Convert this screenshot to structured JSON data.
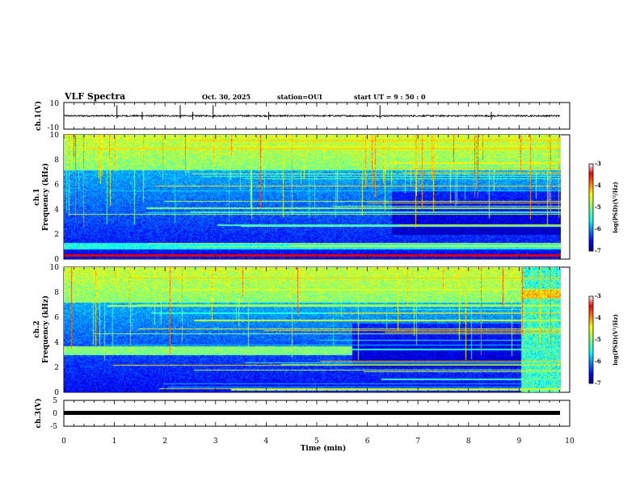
{
  "header": {
    "title": "VLF Spectra",
    "date": "Oct. 30, 2025",
    "station": "station=OUI",
    "start_ut": "start  UT =   9 : 50 : 0"
  },
  "chart_data": [
    {
      "type": "line",
      "name": "ch1-waveform",
      "ylabel": "ch.1(V)",
      "ylim": [
        -10,
        10
      ],
      "yticks": [
        "10",
        "-10"
      ],
      "xlim": [
        0,
        10
      ],
      "baseline": 0,
      "description_values": {
        "noise_amplitude": 0.6,
        "spike_times": [
          1.05,
          1.55,
          2.3,
          2.55,
          2.95,
          4.05,
          6.25,
          8.45
        ]
      }
    },
    {
      "type": "heatmap",
      "name": "ch1-spectrogram",
      "ylabel": "ch.1",
      "ylabel2": "Frequency (kHz)",
      "ylim": [
        0,
        10
      ],
      "yticks": [
        "0",
        "2",
        "4",
        "6",
        "8",
        "10"
      ],
      "xlim": [
        0,
        9.82
      ],
      "colorbar": {
        "label": "log(PSD)(V²/Hz)",
        "range": [
          -7,
          -3
        ],
        "ticks": [
          "-3",
          "-4",
          "-5",
          "-6",
          "-7"
        ]
      }
    },
    {
      "type": "heatmap",
      "name": "ch2-spectrogram",
      "ylabel": "ch.2",
      "ylabel2": "Frequency (kHz)",
      "ylim": [
        0,
        10
      ],
      "yticks": [
        "0",
        "2",
        "4",
        "6",
        "8",
        "10"
      ],
      "xlim": [
        0,
        9.82
      ],
      "colorbar": {
        "label": "log(PSD)(V²/Hz)",
        "range": [
          -7,
          -3
        ],
        "ticks": [
          "-3",
          "-4",
          "-5",
          "-6",
          "-7"
        ]
      }
    },
    {
      "type": "line",
      "name": "ch3-waveform",
      "ylabel": "ch.3(V)",
      "ylim": [
        -5,
        5
      ],
      "yticks": [
        "5",
        "0",
        "-5"
      ],
      "xlim": [
        0,
        10
      ],
      "baseline": 0
    }
  ],
  "xaxis": {
    "label": "Time  (min)",
    "range": [
      0,
      10
    ],
    "ticks": [
      "0",
      "1",
      "2",
      "3",
      "4",
      "5",
      "6",
      "7",
      "8",
      "9",
      "10"
    ]
  },
  "colors": {
    "background": "#ffffff",
    "axis": "#000000",
    "jet_low": "#00007f",
    "jet_high": "#7f0000"
  }
}
